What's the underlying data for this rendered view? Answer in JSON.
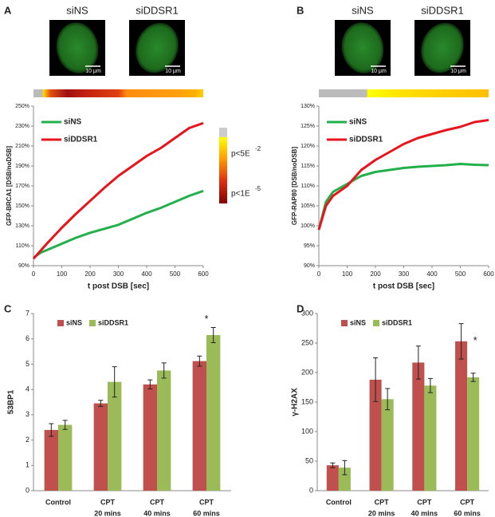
{
  "chart_data": [
    {
      "type": "line",
      "label": "A",
      "images": [
        {
          "title": "siNS",
          "scale": "10 μm"
        },
        {
          "title": "siDDSR1",
          "scale": "10 μm"
        }
      ],
      "colorbar_labels": [
        {
          "text": "p<5E",
          "sup": "-2"
        },
        {
          "text": "p<1E",
          "sup": "-5"
        }
      ],
      "xlabel": "t post DSB [sec]",
      "ylabel": "GFP-BRCA1 [DSB/noDSB]",
      "x": [
        0,
        25,
        50,
        100,
        150,
        200,
        250,
        300,
        350,
        400,
        450,
        500,
        550,
        600
      ],
      "series": [
        {
          "name": "siNS",
          "color": "#22b04a",
          "values": [
            98,
            103,
            106,
            112,
            118,
            123,
            127,
            131,
            137,
            143,
            148,
            154,
            160,
            165
          ]
        },
        {
          "name": "siDDSR1",
          "color": "#e8141c",
          "values": [
            97,
            105,
            113,
            128,
            142,
            155,
            168,
            180,
            190,
            200,
            208,
            218,
            228,
            233
          ]
        }
      ],
      "xlim": [
        0,
        600
      ],
      "xticks": [
        0,
        100,
        200,
        300,
        400,
        500,
        600
      ],
      "ylim": [
        90,
        250
      ],
      "yticks": [
        {
          "value": 90,
          "label": "90%"
        },
        {
          "value": 110,
          "label": "110%"
        },
        {
          "value": 130,
          "label": "130%"
        },
        {
          "value": 150,
          "label": "150%"
        },
        {
          "value": 170,
          "label": "170%"
        },
        {
          "value": 190,
          "label": "190%"
        },
        {
          "value": 210,
          "label": "210%"
        },
        {
          "value": 230,
          "label": "230%"
        },
        {
          "value": 250,
          "label": "250%"
        }
      ],
      "legend": "upper left"
    },
    {
      "type": "line",
      "label": "B",
      "images": [
        {
          "title": "siNS",
          "scale": "10 μm"
        },
        {
          "title": "siDDSR1",
          "scale": "10 μm"
        }
      ],
      "xlabel": "t post DSB [sec]",
      "ylabel": "GFP-RAP80 [DSB/noDSB]",
      "x": [
        0,
        25,
        50,
        100,
        150,
        200,
        250,
        300,
        350,
        400,
        450,
        500,
        550,
        600
      ],
      "series": [
        {
          "name": "siNS",
          "color": "#22b04a",
          "values": [
            99,
            106,
            108.5,
            110.5,
            112.5,
            113.5,
            114,
            114.5,
            114.8,
            115,
            115.2,
            115.5,
            115.3,
            115.2
          ]
        },
        {
          "name": "siDDSR1",
          "color": "#e8141c",
          "values": [
            99,
            105,
            107.5,
            110,
            114,
            116.5,
            118.5,
            120.5,
            122,
            123,
            124,
            124.8,
            126,
            126.5
          ]
        }
      ],
      "xlim": [
        0,
        600
      ],
      "xticks": [
        0,
        100,
        200,
        300,
        400,
        500,
        600
      ],
      "ylim": [
        90,
        130
      ],
      "yticks": [
        {
          "value": 90,
          "label": "90%"
        },
        {
          "value": 95,
          "label": "95%"
        },
        {
          "value": 100,
          "label": "100%"
        },
        {
          "value": 105,
          "label": "105%"
        },
        {
          "value": 110,
          "label": "110%"
        },
        {
          "value": 115,
          "label": "115%"
        },
        {
          "value": 120,
          "label": "120%"
        },
        {
          "value": 125,
          "label": "125%"
        },
        {
          "value": 130,
          "label": "130%"
        }
      ],
      "legend": "upper left"
    },
    {
      "type": "bar",
      "label": "C",
      "ylabel": "53BP1",
      "categories": [
        [
          "Control"
        ],
        [
          "CPT",
          "20 mins"
        ],
        [
          "CPT",
          "40 mins"
        ],
        [
          "CPT",
          "60 mins"
        ]
      ],
      "series": [
        {
          "name": "siNS",
          "color": "#c0504d",
          "values": [
            2.4,
            3.45,
            4.2,
            5.12
          ],
          "errors": [
            0.25,
            0.12,
            0.18,
            0.2
          ]
        },
        {
          "name": "siDDSR1",
          "color": "#9bbb59",
          "values": [
            2.6,
            4.3,
            4.75,
            6.15
          ],
          "errors": [
            0.18,
            0.6,
            0.3,
            0.3
          ]
        }
      ],
      "ylim": [
        0,
        7
      ],
      "yticks": [
        0,
        1,
        2,
        3,
        4,
        5,
        6,
        7
      ],
      "annotation": "*",
      "legend": "upper left"
    },
    {
      "type": "bar",
      "label": "D",
      "ylabel": "γ-H2AX",
      "categories": [
        [
          "Control"
        ],
        [
          "CPT",
          "20 mins"
        ],
        [
          "CPT",
          "40 mins"
        ],
        [
          "CPT",
          "60 mins"
        ]
      ],
      "series": [
        {
          "name": "siNS",
          "color": "#c0504d",
          "values": [
            43,
            188,
            217,
            253
          ],
          "errors": [
            4,
            37,
            28,
            30
          ]
        },
        {
          "name": "siDDSR1",
          "color": "#9bbb59",
          "values": [
            39,
            155,
            178,
            192
          ],
          "errors": [
            12,
            18,
            12,
            7
          ]
        }
      ],
      "ylim": [
        0,
        300
      ],
      "yticks": [
        0,
        50,
        100,
        150,
        200,
        250,
        300
      ],
      "annotation": "*",
      "legend": "upper left"
    }
  ]
}
